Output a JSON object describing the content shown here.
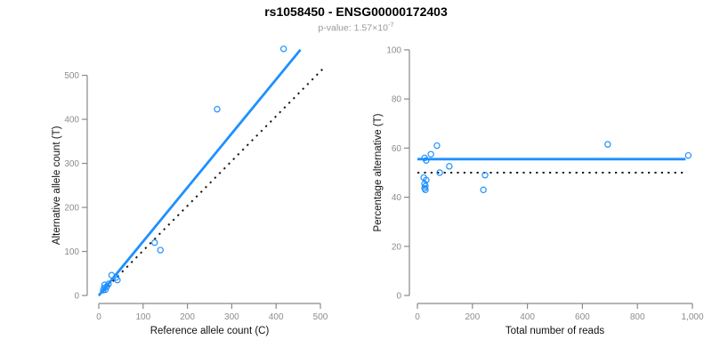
{
  "title": "rs1058450 - ENSG00000172403",
  "subtitle": {
    "text": "p-value: 1.57×10",
    "exponent": "-7"
  },
  "colors": {
    "accent_blue": "#1E90FF",
    "dotted_black": "#1A1A1A",
    "axis_gray": "#8A8A8A",
    "tick_label_gray": "#8C8C8C",
    "title_black": "#000000",
    "subtitle_gray": "#999999"
  },
  "chart_data": [
    {
      "type": "scatter",
      "name": "allele-counts-scatter",
      "xlabel": "Reference allele count (C)",
      "ylabel": "Alternative allele count (T)",
      "xlim": [
        0,
        520
      ],
      "ylim": [
        0,
        570
      ],
      "grid": false,
      "xticks": [
        0,
        100,
        200,
        300,
        400,
        500
      ],
      "xtick_labels": [
        "0",
        "100",
        "200",
        "300",
        "400",
        "500"
      ],
      "yticks": [
        0,
        100,
        200,
        300,
        400,
        500
      ],
      "ytick_labels": [
        "0",
        "100",
        "200",
        "300",
        "400",
        "500"
      ],
      "points": [
        [
          10,
          12
        ],
        [
          12,
          17
        ],
        [
          13,
          24
        ],
        [
          15,
          13
        ],
        [
          18,
          20
        ],
        [
          22,
          26
        ],
        [
          29,
          46
        ],
        [
          39,
          41
        ],
        [
          42,
          35
        ],
        [
          126,
          120
        ],
        [
          139,
          103
        ],
        [
          267,
          423
        ],
        [
          417,
          560
        ]
      ],
      "lines": [
        {
          "name": "identity-line",
          "x1": 0,
          "y1": 0,
          "x2": 505,
          "y2": 514,
          "color": "#1A1A1A",
          "dashed": true
        },
        {
          "name": "fit-line",
          "x1": 0,
          "y1": 0,
          "x2": 455,
          "y2": 558,
          "color": "#1E90FF",
          "dashed": false
        }
      ]
    },
    {
      "type": "scatter",
      "name": "percentage-vs-coverage-scatter",
      "xlabel": "Total number of reads",
      "ylabel": "Percentage alternative (T)",
      "xlim": [
        0,
        1000
      ],
      "ylim": [
        0,
        100
      ],
      "grid": false,
      "xticks": [
        0,
        200,
        400,
        600,
        800,
        1000
      ],
      "xtick_labels": [
        "0",
        "200",
        "400",
        "600",
        "800",
        "1,000"
      ],
      "yticks": [
        0,
        20,
        40,
        60,
        80,
        100
      ],
      "ytick_labels": [
        "0",
        "20",
        "40",
        "60",
        "80",
        "100"
      ],
      "points": [
        [
          23,
          48
        ],
        [
          26,
          56
        ],
        [
          26,
          45.5
        ],
        [
          26,
          43.7
        ],
        [
          29,
          44.5
        ],
        [
          29,
          43
        ],
        [
          32,
          55
        ],
        [
          32,
          47
        ],
        [
          49,
          57.5
        ],
        [
          71,
          61
        ],
        [
          81,
          50
        ],
        [
          116,
          52.6
        ],
        [
          240,
          43
        ],
        [
          246,
          49
        ],
        [
          692,
          61.5
        ],
        [
          985,
          57
        ]
      ],
      "lines": [
        {
          "name": "reference-line-50pct",
          "x1": 0,
          "y1": 50,
          "x2": 975,
          "y2": 50,
          "color": "#1A1A1A",
          "dashed": true
        },
        {
          "name": "fit-line",
          "x1": 0,
          "y1": 55.5,
          "x2": 975,
          "y2": 55.5,
          "color": "#1E90FF",
          "dashed": false
        }
      ]
    }
  ]
}
